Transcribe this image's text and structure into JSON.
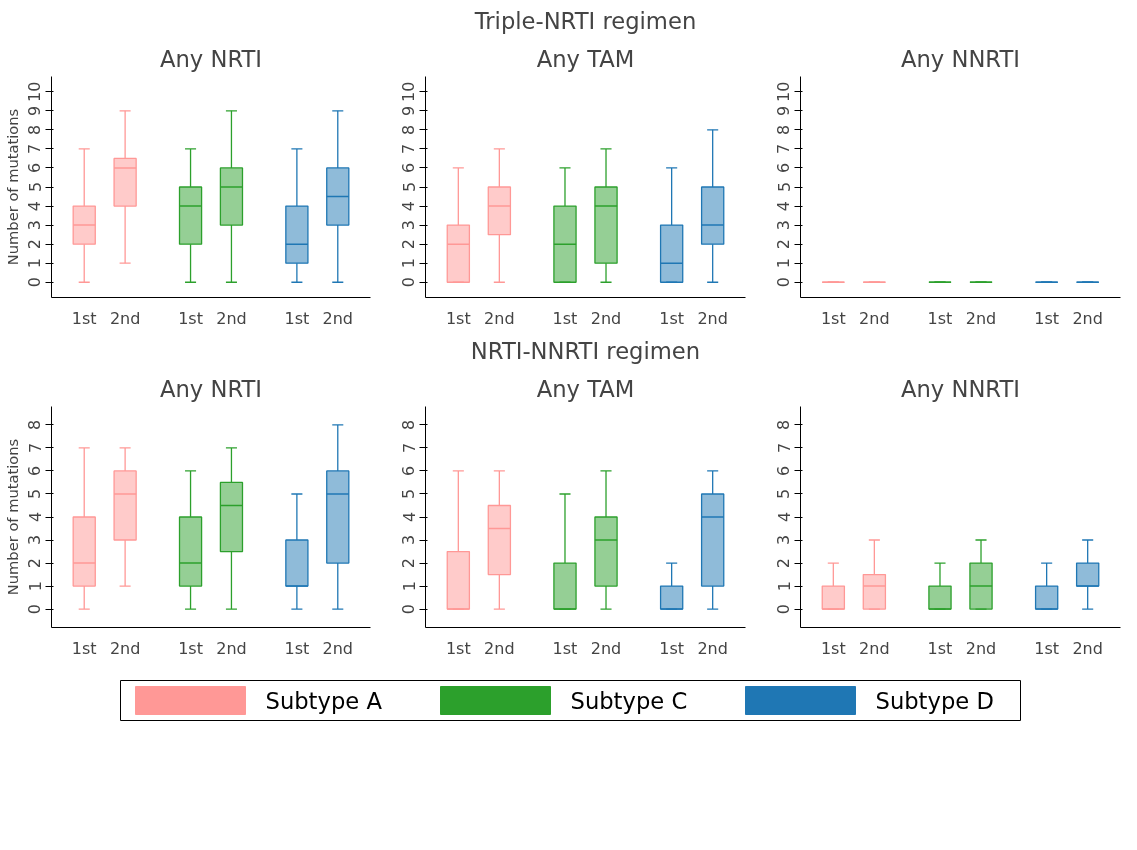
{
  "chart_data": [
    {
      "type": "box",
      "title": "Any NRTI",
      "ylabel": "Number of mutations",
      "categories": [
        "1st",
        "2nd",
        "1st",
        "2nd",
        "1st",
        "2nd"
      ],
      "ylim": [
        -0.8,
        10.8
      ],
      "yticks": [
        0,
        1,
        2,
        3,
        4,
        5,
        6,
        7,
        8,
        9,
        10
      ],
      "grid": false,
      "series": [
        {
          "color": "#ff9896",
          "boxes": [
            {
              "low": 0,
              "q1": 2,
              "median": 3,
              "q3": 4,
              "high": 7
            },
            {
              "low": 1,
              "q1": 4,
              "median": 6,
              "q3": 6.5,
              "high": 9
            },
            null,
            null,
            null,
            null
          ]
        },
        {
          "color": "#2ca02c",
          "boxes": [
            null,
            null,
            {
              "low": 0,
              "q1": 2,
              "median": 4,
              "q3": 5,
              "high": 7
            },
            {
              "low": 0,
              "q1": 3,
              "median": 5,
              "q3": 6,
              "high": 9
            },
            null,
            null
          ]
        },
        {
          "color": "#1f77b4",
          "boxes": [
            null,
            null,
            null,
            null,
            {
              "low": 0,
              "q1": 1,
              "median": 2,
              "q3": 4,
              "high": 7
            },
            {
              "low": 0,
              "q1": 3,
              "median": 4.5,
              "q3": 6,
              "high": 9
            }
          ]
        }
      ]
    },
    {
      "type": "box",
      "title": "Any TAM",
      "subtitle": "Triple-NRTI regimen",
      "categories": [
        "1st",
        "2nd",
        "1st",
        "2nd",
        "1st",
        "2nd"
      ],
      "ylim": [
        -0.8,
        10.8
      ],
      "yticks": [
        0,
        1,
        2,
        3,
        4,
        5,
        6,
        7,
        8,
        9,
        10
      ],
      "grid": false,
      "series": [
        {
          "color": "#ff9896",
          "boxes": [
            {
              "low": 0,
              "q1": 0,
              "median": 2,
              "q3": 3,
              "high": 6
            },
            {
              "low": 0,
              "q1": 2.5,
              "median": 4,
              "q3": 5,
              "high": 7
            },
            null,
            null,
            null,
            null
          ]
        },
        {
          "color": "#2ca02c",
          "boxes": [
            null,
            null,
            {
              "low": 0,
              "q1": 0,
              "median": 2,
              "q3": 4,
              "high": 6
            },
            {
              "low": 0,
              "q1": 1,
              "median": 4,
              "q3": 5,
              "high": 7
            },
            null,
            null
          ]
        },
        {
          "color": "#1f77b4",
          "boxes": [
            null,
            null,
            null,
            null,
            {
              "low": 0,
              "q1": 0,
              "median": 1,
              "q3": 3,
              "high": 6
            },
            {
              "low": 0,
              "q1": 2,
              "median": 3,
              "q3": 5,
              "high": 8
            }
          ]
        }
      ]
    },
    {
      "type": "box",
      "title": "Any NNRTI",
      "categories": [
        "1st",
        "2nd",
        "1st",
        "2nd",
        "1st",
        "2nd"
      ],
      "ylim": [
        -0.8,
        10.8
      ],
      "yticks": [
        0,
        1,
        2,
        3,
        4,
        5,
        6,
        7,
        8,
        9,
        10
      ],
      "grid": false,
      "series": [
        {
          "color": "#ff9896",
          "boxes": [
            {
              "low": 0,
              "q1": 0,
              "median": 0,
              "q3": 0,
              "high": 0
            },
            {
              "low": 0,
              "q1": 0,
              "median": 0,
              "q3": 0,
              "high": 0
            },
            null,
            null,
            null,
            null
          ]
        },
        {
          "color": "#2ca02c",
          "boxes": [
            null,
            null,
            {
              "low": 0,
              "q1": 0,
              "median": 0,
              "q3": 0,
              "high": 0
            },
            {
              "low": 0,
              "q1": 0,
              "median": 0,
              "q3": 0,
              "high": 0
            },
            null,
            null
          ]
        },
        {
          "color": "#1f77b4",
          "boxes": [
            null,
            null,
            null,
            null,
            {
              "low": 0,
              "q1": 0,
              "median": 0,
              "q3": 0,
              "high": 0
            },
            {
              "low": 0,
              "q1": 0,
              "median": 0,
              "q3": 0,
              "high": 0
            }
          ]
        }
      ]
    },
    {
      "type": "box",
      "title": "Any NRTI",
      "ylabel": "Number of mutations",
      "categories": [
        "1st",
        "2nd",
        "1st",
        "2nd",
        "1st",
        "2nd"
      ],
      "ylim": [
        -0.8,
        8.8
      ],
      "yticks": [
        0,
        1,
        2,
        3,
        4,
        5,
        6,
        7,
        8
      ],
      "grid": false,
      "series": [
        {
          "color": "#ff9896",
          "boxes": [
            {
              "low": 0,
              "q1": 1,
              "median": 2,
              "q3": 4,
              "high": 7
            },
            {
              "low": 1,
              "q1": 3,
              "median": 5,
              "q3": 6,
              "high": 7
            },
            null,
            null,
            null,
            null
          ]
        },
        {
          "color": "#2ca02c",
          "boxes": [
            null,
            null,
            {
              "low": 0,
              "q1": 1,
              "median": 2,
              "q3": 4,
              "high": 6
            },
            {
              "low": 0,
              "q1": 2.5,
              "median": 4.5,
              "q3": 5.5,
              "high": 7
            },
            null,
            null
          ]
        },
        {
          "color": "#1f77b4",
          "boxes": [
            null,
            null,
            null,
            null,
            {
              "low": 0,
              "q1": 1,
              "median": 1,
              "q3": 3,
              "high": 5
            },
            {
              "low": 0,
              "q1": 2,
              "median": 5,
              "q3": 6,
              "high": 8
            }
          ]
        }
      ]
    },
    {
      "type": "box",
      "title": "Any TAM",
      "subtitle": "NRTI-NNRTI regimen",
      "categories": [
        "1st",
        "2nd",
        "1st",
        "2nd",
        "1st",
        "2nd"
      ],
      "ylim": [
        -0.8,
        8.8
      ],
      "yticks": [
        0,
        1,
        2,
        3,
        4,
        5,
        6,
        7,
        8
      ],
      "grid": false,
      "series": [
        {
          "color": "#ff9896",
          "boxes": [
            {
              "low": 0,
              "q1": 0,
              "median": 0,
              "q3": 2.5,
              "high": 6
            },
            {
              "low": 0,
              "q1": 1.5,
              "median": 3.5,
              "q3": 4.5,
              "high": 6
            },
            null,
            null,
            null,
            null
          ]
        },
        {
          "color": "#2ca02c",
          "boxes": [
            null,
            null,
            {
              "low": 0,
              "q1": 0,
              "median": 0,
              "q3": 2,
              "high": 5
            },
            {
              "low": 0,
              "q1": 1,
              "median": 3,
              "q3": 4,
              "high": 6
            },
            null,
            null
          ]
        },
        {
          "color": "#1f77b4",
          "boxes": [
            null,
            null,
            null,
            null,
            {
              "low": 0,
              "q1": 0,
              "median": 0,
              "q3": 1,
              "high": 2
            },
            {
              "low": 0,
              "q1": 1,
              "median": 4,
              "q3": 5,
              "high": 6
            }
          ]
        }
      ]
    },
    {
      "type": "box",
      "title": "Any NNRTI",
      "categories": [
        "1st",
        "2nd",
        "1st",
        "2nd",
        "1st",
        "2nd"
      ],
      "ylim": [
        -0.8,
        8.8
      ],
      "yticks": [
        0,
        1,
        2,
        3,
        4,
        5,
        6,
        7,
        8
      ],
      "grid": false,
      "legend": "bottom",
      "series": [
        {
          "name": "Subtype A",
          "color": "#ff9896",
          "boxes": [
            {
              "low": 0,
              "q1": 0,
              "median": 0,
              "q3": 1,
              "high": 2
            },
            {
              "low": 0,
              "q1": 0,
              "median": 1,
              "q3": 1.5,
              "high": 3
            },
            null,
            null,
            null,
            null
          ]
        },
        {
          "name": "Subtype C",
          "color": "#2ca02c",
          "boxes": [
            null,
            null,
            {
              "low": 0,
              "q1": 0,
              "median": 0,
              "q3": 1,
              "high": 2
            },
            {
              "low": 0,
              "q1": 0,
              "median": 1,
              "q3": 2,
              "high": 3
            },
            null,
            null
          ]
        },
        {
          "name": "Subtype D",
          "color": "#1f77b4",
          "boxes": [
            null,
            null,
            null,
            null,
            {
              "low": 0,
              "q1": 0,
              "median": 0,
              "q3": 1,
              "high": 2
            },
            {
              "low": 0,
              "q1": 1,
              "median": 1,
              "q3": 2,
              "high": 3
            }
          ]
        }
      ]
    }
  ]
}
